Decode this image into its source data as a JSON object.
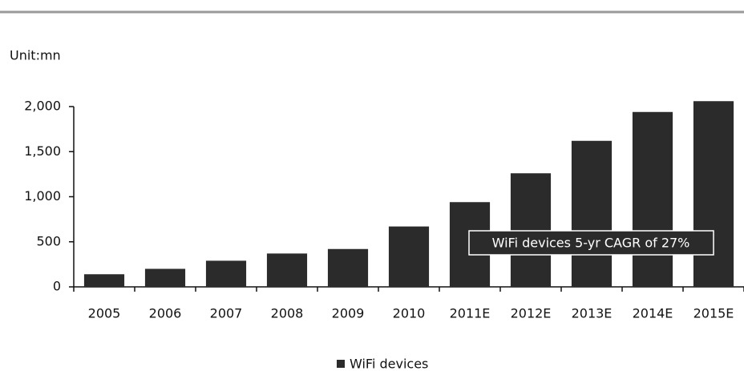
{
  "chart_data": {
    "type": "bar",
    "unit_label": "Unit:mn",
    "categories": [
      "2005",
      "2006",
      "2007",
      "2008",
      "2009",
      "2010",
      "2011E",
      "2012E",
      "2013E",
      "2014E",
      "2015E"
    ],
    "series": [
      {
        "name": "WiFi devices",
        "color": "#2b2b2b",
        "values": [
          140,
          200,
          290,
          370,
          420,
          670,
          940,
          1260,
          1620,
          1940,
          2060
        ]
      }
    ],
    "ylim": [
      0,
      2000
    ],
    "yticks": [
      0,
      {
        "value": 500,
        "label": "500"
      },
      {
        "value": 1000,
        "label": "1,000"
      },
      {
        "value": 1500,
        "label": "1,500"
      },
      {
        "value": 2000,
        "label": "2,000"
      }
    ],
    "annotation": "WiFi devices 5-yr CAGR of 27%",
    "legend": "bottom"
  }
}
